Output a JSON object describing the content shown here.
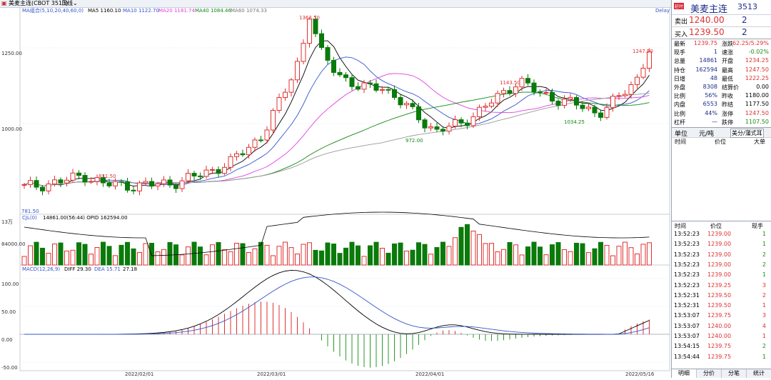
{
  "topbar": {
    "instrument": "美麦主连(CBOT 3513)",
    "period": "日线"
  },
  "main_legend": {
    "group": "MA组合(5,10,20,40,60,0)",
    "ma5": "MA5 1160.10",
    "ma10": "MA10 1122.70",
    "ma20": "MA20 1181.74",
    "ma40": "MA40 1084.46",
    "ma60": "MA60 1074.33",
    "delay": "Delay"
  },
  "vol_legend": {
    "title": "CJL(0)",
    "values": "14861.00(56:44)  OPID 162594.00"
  },
  "macd_legend": {
    "title": "MACD(12,26,9)",
    "diff": "DIFF 29.30",
    "dea": "DEA 15.71",
    "macd": "27.18"
  },
  "axes": {
    "price_ticks": [
      "1250.00",
      "1000.00"
    ],
    "vol_ticks": [
      "13万",
      "84000.00"
    ],
    "macd_ticks": [
      "100.00",
      "50.00",
      "0.00",
      "-50.00"
    ],
    "date_ticks": [
      "2022/02/01",
      "2022/03/01",
      "2022/04/01",
      "2022/05/16"
    ]
  },
  "annotations": {
    "high1": "1363.50",
    "high2": "1247.50",
    "p831": "831.50",
    "p1143": "1143.50",
    "low972": "972.00",
    "low1034": "1034.25",
    "low_left": "781.50"
  },
  "colors": {
    "up": "#e03030",
    "down": "#0a7a0a",
    "ma5": "#000000",
    "ma10": "#3355cc",
    "ma20": "#e040e0",
    "ma40": "#118811",
    "ma60": "#9a9a9a",
    "diff": "#000000",
    "dea": "#3355cc"
  },
  "panel": {
    "badge": "延时",
    "title": "美麦主连",
    "code": "3513",
    "sell_label": "卖出",
    "sell_price": "1240.00",
    "sell_qty": "2",
    "buy_label": "买入",
    "buy_price": "1239.50",
    "buy_qty": "2",
    "stats": [
      {
        "l1": "最新",
        "v1": "1239.75",
        "c1": "red",
        "l2": "涨跌",
        "v2": "62.25/5.29%",
        "c2": "red"
      },
      {
        "l1": "现手",
        "v1": "1",
        "c1": "blue",
        "l2": "速涨",
        "v2": "-0.02%",
        "c2": "green"
      },
      {
        "l1": "总量",
        "v1": "14861",
        "c1": "blue",
        "l2": "开盘",
        "v2": "1234.25",
        "c2": "red"
      },
      {
        "l1": "持仓",
        "v1": "162594",
        "c1": "blue",
        "l2": "最高",
        "v2": "1247.50",
        "c2": "red"
      },
      {
        "l1": "日增",
        "v1": "48",
        "c1": "blue",
        "l2": "最低",
        "v2": "1222.25",
        "c2": "red"
      },
      {
        "l1": "外盘",
        "v1": "8308",
        "c1": "blue",
        "l2": "结算价",
        "v2": "0.00",
        "c2": "black"
      },
      {
        "l1": "比例",
        "v1": "56%",
        "c1": "blue",
        "l2": "昨收",
        "v2": "1180.00",
        "c2": "black"
      },
      {
        "l1": "内盘",
        "v1": "6553",
        "c1": "blue",
        "l2": "昨结",
        "v2": "1177.50",
        "c2": "black"
      },
      {
        "l1": "比例",
        "v1": "44%",
        "c1": "blue",
        "l2": "涨停",
        "v2": "1247.50",
        "c2": "red"
      },
      {
        "l1": "杠杆",
        "v1": "—",
        "c1": "blue",
        "l2": "跌停",
        "v2": "1107.50",
        "c2": "green"
      }
    ],
    "unit_label": "单位",
    "unit_value": "元/吨",
    "currency": "美分/蒲式耳",
    "trades_headers": [
      "时间",
      "价位",
      "大单"
    ],
    "ticks_headers": [
      "时间",
      "价位",
      "现手"
    ],
    "ticks": [
      {
        "t": "13:52:23",
        "p": "1239.00",
        "q": "1",
        "qc": "green"
      },
      {
        "t": "13:52:23",
        "p": "1239.00",
        "q": "1",
        "qc": "green"
      },
      {
        "t": "13:52:23",
        "p": "1239.00",
        "q": "2",
        "qc": "green"
      },
      {
        "t": "13:52:23",
        "p": "1239.00",
        "q": "2",
        "qc": "green"
      },
      {
        "t": "13:52:23",
        "p": "1239.00",
        "q": "1",
        "qc": "green"
      },
      {
        "t": "13:52:23",
        "p": "1239.25",
        "q": "3",
        "qc": "red"
      },
      {
        "t": "13:52:31",
        "p": "1239.50",
        "q": "2",
        "qc": "red"
      },
      {
        "t": "13:52:31",
        "p": "1239.50",
        "q": "1",
        "qc": "red"
      },
      {
        "t": "13:53:07",
        "p": "1239.75",
        "q": "3",
        "qc": "red"
      },
      {
        "t": "13:53:07",
        "p": "1240.00",
        "q": "4",
        "qc": "red"
      },
      {
        "t": "13:53:07",
        "p": "1240.00",
        "q": "1",
        "qc": "red"
      },
      {
        "t": "13:54:15",
        "p": "1239.75",
        "q": "2",
        "qc": "green"
      },
      {
        "t": "13:54:44",
        "p": "1239.75",
        "q": "1",
        "qc": "green"
      }
    ],
    "tabs": [
      "明细",
      "分价",
      "分笔",
      "统计"
    ]
  }
}
